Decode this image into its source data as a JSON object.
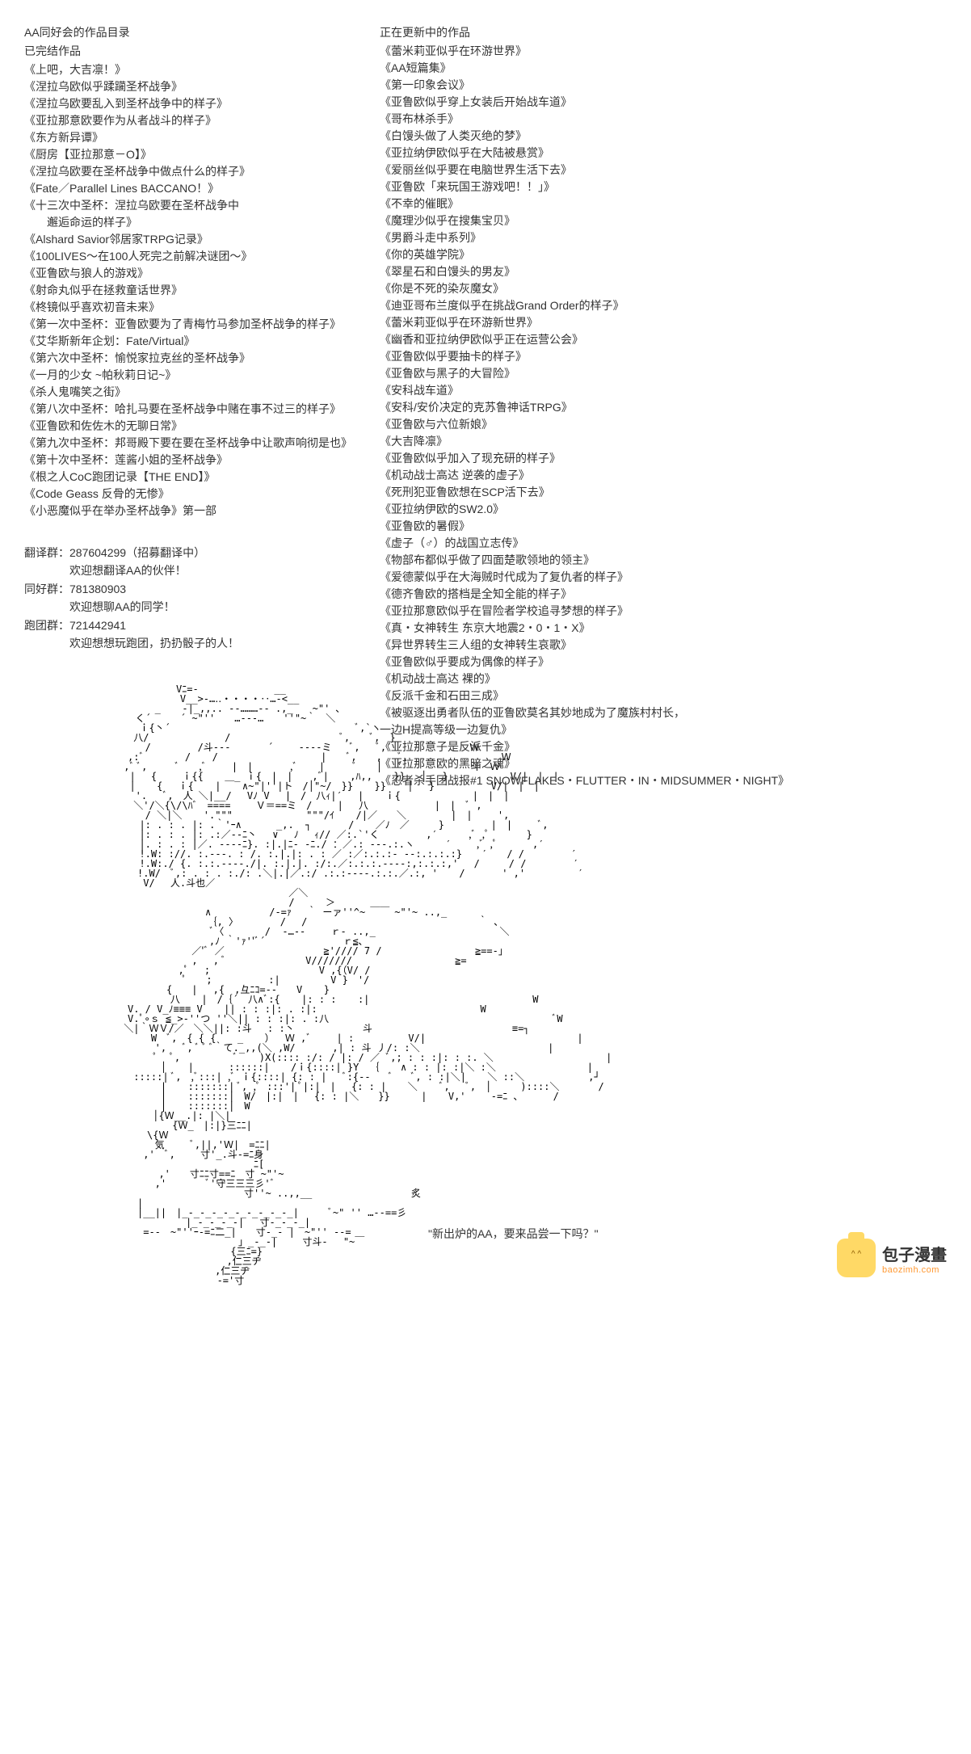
{
  "left": {
    "header": "AA同好会的作品目录",
    "completed_title": "已完结作品",
    "completed_items": [
      "《上吧，大吉凛！》",
      "《涅拉乌欧似乎蹂躏圣杯战争》",
      "《涅拉乌欧要乱入到圣杯战争中的样子》",
      "《亚拉那意欧要作为从者战斗的样子》",
      "《东方新异谭》",
      "《厨房【亚拉那意－O】》",
      "《涅拉乌欧要在圣杯战争中做点什么的样子》",
      "《Fate／Parallel Lines BACCANO！》",
      "《十三次中圣杯：涅拉乌欧要在圣杯战争中\n　　邂逅命运的样子》",
      "《Alshard Savior邻居家TRPG记录》",
      "《100LIVES～在100人死完之前解决谜团～》",
      "《亚鲁欧与狼人的游戏》",
      "《射命丸似乎在拯救童话世界》",
      "《柊镜似乎喜欢初音未来》",
      "《第一次中圣杯：亚鲁欧要为了青梅竹马参加圣杯战争的样子》",
      "《艾华斯新年企划：Fate/Virtual》",
      "《第六次中圣杯：愉悦家拉克丝的圣杯战争》",
      "《一月的少女 ~帕秋莉日记~》",
      "《杀人鬼嘴笑之街》",
      "《第八次中圣杯：哈扎马要在圣杯战争中赌在事不过三的样子》",
      "《亚鲁欧和佐佐木的无聊日常》",
      "《第九次中圣杯：邦哥殿下要在要在圣杯战争中让歌声响彻是也》",
      "《第十次中圣杯：莲酱小姐的圣杯战争》",
      "《根之人CoC跑团记录【THE END】》",
      "《Code Geass 反骨的无惨》",
      "《小恶魔似乎在举办圣杯战争》第一部"
    ],
    "groups": {
      "translate_label": "翻译群：287604299（招募翻译中）",
      "translate_sub": "欢迎想翻译AA的伙伴！",
      "fan_label": "同好群：781380903",
      "fan_sub": "欢迎想聊AA的同学！",
      "trpg_label": "跑团群：721442941",
      "trpg_sub": "欢迎想想玩跑团，扔扔骰子的人！"
    }
  },
  "right": {
    "updating_title": "正在更新中的作品",
    "updating_items": [
      "《蕾米莉亚似乎在环游世界》",
      "《AA短篇集》",
      "《第一印象会议》",
      "《亚鲁欧似乎穿上女装后开始战车道》",
      "《哥布林杀手》",
      "《白馒头做了人类灭绝的梦》",
      "《亚拉纳伊欧似乎在大陆被悬赏》",
      "《爱丽丝似乎要在电脑世界生活下去》",
      "《亚鲁欧「来玩国王游戏吧！！」》",
      "《不幸的催眠》",
      "《魔理沙似乎在搜集宝贝》",
      "《男爵斗走中系列》",
      "《你的英雄学院》",
      "《翠星石和白馒头的男友》",
      "《你是不死的染灰魔女》",
      "《迪亚哥布兰度似乎在挑战Grand Order的样子》",
      "《蕾米莉亚似乎在环游新世界》",
      "《幽香和亚拉纳伊欧似乎正在运营公会》",
      "《亚鲁欧似乎要抽卡的样子》",
      "《亚鲁欧与黑子的大冒险》",
      "《安科战车道》",
      "《安科/安价决定的克苏鲁神话TRPG》",
      "《亚鲁欧与六位新娘》",
      "《大吉降凛》",
      "《亚鲁欧似乎加入了现充研的样子》",
      "《机动战士高达 逆袭的虚子》",
      "《死刑犯亚鲁欧想在SCP活下去》",
      "《亚拉纳伊欧的SW2.0》",
      "《亚鲁欧的暑假》",
      "《虚子（♂）的战国立志传》",
      "《物部布都似乎做了四面楚歌领地的领主》",
      "《爱德蒙似乎在大海贼时代成为了复仇者的样子》",
      "《德齐鲁欧的搭档是全知全能的样子》",
      "《亚拉那意欧似乎在冒险者学校追寻梦想的样子》",
      "《真・女神转生 东京大地震2・0・1・X》",
      "《异世界转生三人组的女神转生哀歌》",
      "《亚鲁欧似乎要成为偶像的样子》",
      "《机动战士高达 裸的》",
      "《反派千金和石田三成》",
      "《被驱逐出勇者队伍的亚鲁欧莫名其妙地成为了魔族村村长，\n一边H提高等级一边复仇》",
      "《亚拉那意子是反派千金》",
      "《亚拉那意欧的黑暗之魂》",
      "《忍者杀手团战报#1 SNOWFLAKES・FLUTTER・IN・MIDSUMMER・NIGHT》"
    ],
    "quote": "\"新出炉的AA，要来品尝一下吗？\""
  },
  "logo": {
    "main_text": "包子漫畫",
    "sub_text": "baozimh.com"
  },
  "ascii": "　　　　　　　　　Vﾆ=-　　　　 　 　 __\n　　　　 　 　 　 V__>‐…‥・・・・‥…‐<__\n　　　 　 　 _ 　 -|_,,.. -‐………‐- .,_　　~\"' ､\n　 　 　 く´　　　´ ~\"''　　…‐‐‐…　　''\"~｀　＼\n　　　 　 ｉ{丶´　　　　 　 　 　 　 　 　 　 　 　 ﾞ,`ヽ\n　　　　 八/　　　　 　 　 /　 　 　 　 　 　 　 ﾞ,　　ﾞ,　}\n　　 　 　 /　 　 　 /斗‐‐- 　 　 ´　　 -‐‐-ミ 　 ﾞ, 　ﾞ,′　　　　　　　　Ｗ\n　　　　,:ﾞ　　 　 / 　 /　　 　 　 　 　 　 |　　ﾞ,　　, 　ﾞ, 　 　 　 　 　 　Ｗ\n　　　 ,ﾞ ﾞ,　 　 ﾞ　　,ﾞ　　 |　| 　 　 ,ﾞ 　 |　 　 ﾞ　　│ 　ﾞ 　 　 　 　 斗　Ｗ\n　　 　 | 　{　　 ｉ{{ 　 ＿_ ｉ{　|　|　　,ﾞ| 　 ,ﾊ,, 　 }}　 │ 　}　 　 　 　 V/|　|　|\n　 　 　| 　 {　 ｉ{ 　 | 　 ∧~\"|''|ト　/│\"~/　}} 　 }} 　 │ 　}　　 　 　 V/|　|　|\n　 　 　 '.　 ﾞ,　人 ＼|__/　 Vﾉ V　 |　/　八ｨ|′　 | 　 ｉ{　　 　 　 　 |　|　|\n　　　　 ＼'/＼{\\/\\ﾊﾞ　====　　 Ｖ＝==ミ　/　　 |　 八　　　 　 　 |　|　ﾞ ,\n　　 　 　 / ＼|＼ 　 '.\"\"\"　　　　　　　 \"\"\"/ｲ 　 /|／　　＼　　　　 |　|　　 ',\n　　　 　 |: . : . |: .｀'ｰ∧　　　 _,.  ┐ 　 　 / 　 ／ﾉ　／　　　}　 　 　 |　|　　 ﾞ,\n　　 　 　|: . : . |: .:／‐-ﾆ丶　 ∨　 ﾉ　 ｨ// ／:.`'く　 　 　 ,′　 　 ,ﾞ ,ﾟ 　 　 }\n　　 　 　|. : . : |／. ‐‐--ﾆ}. :|.|ﾆ- -ﾆ./ ：／.: ‐‐-.:.ヽ　 　 ′　　 ,ﾞ ,ﾟ　　　 ,′\n　　　 　 !.W: ://. :.‐‐-. : /. :.|.|: . : ／ :／:.:.:‐ ‐-:.:.:.:}　　′　　/ /　 　 　 ′\n　　 　 　!.W:./ {. :.:.‐‐--./|. :.|.|. :/:.／:.:.:.‐‐‐-:,:.:.:,'　 /　　　/ /　 　 　 ′\n　　　　　!.W/　ﾞ,: . : . :./: .＼|.|／.:/ .:.:‐‐-‐.:.:.／.:, ' 　 / 　 　 ' ,' 　 　 　 ′\n　　　　 　V/　 人.斗也／\n　　　　　　　　　　　　　　　　　　　　 ／＼\n　　　　　　　　　　　　 　 　 　 　 　 /　 　 ＞　　　 ＿＿\n　　　　　　　　　　　　∧　　　　　　/-=ｧ　 ｀ ーァ''^~　　　~\"'~ ..,_\n　　 　 　 　 　 　 　 ｛, 〉　 　 　 /　 /　 　 　 　 　 　 　 　 　 　 　 ｀ 、\n　 　 　 　 　 　 　 　 ﾞ〈　　 　 /  ‐…‐-　 　ｒ- ..,_　　　　　　　　　 　 　 ＼\n　　　　　　　 　 　 　 ,ﾉ ｀'ｧ''ﾞ´　 　 　 　 　 ｒ≦､\n　　　　　　　　　　 ／'ﾞ ／ 　 　 　 　 　 　 ≧'//// 7 /　 　 　 　 　 　 ≧==-」\n　　 　 　 　 　 　 ,　 , ﾞ　　　　　　 　 V///////　　　　　　　　　　 ≧=\n　　　　　　　 　 ,ﾟ　 ;　 　 　 　 　 　 　 V ,{（V/ /\n　 　 　 　 　 　 ﾟ　　;　　 　 　 :|　　　 　 V }　'/\n　　　　　　　　{　　|　 ,{　,彑ﾆｺ=--　　V 　 }\n　　　 　 　 　 八 　 |　/｛´　八∧ﾞ:{ 　 |: : : 　 :|　　　　　 　 　 　 　 　 　 　 W\n　　　　V. / V_ﾉ≡≡≡ V 　 || : : :|: . :|:　　　　　 　 　 　 　 　 　 　 W\n　　　　V.ﾟ∘ｓ ≦_>-''つ ''＼|| : : :|: . :八 　 　 　 　 　 　 　 　 　 　 　 　 　 　 ﾞW\n　　　 ＼|｀ＷＶ/／　＼＼||: :斗　 : :丶 　 　 　 　 斗　 　 　 　 　 　 　 　 　 ≡=┐\n　 　 　 　 W　ﾞ,　{ { { 　 _ 　 ）　 Ｗ ,ﾞ　　 | :　　　　　 V/|　　　　　　　 　 　 　 　 　 |\n　　　 　 　 ',　 ﾞ, ﾞ ﾞ ﾞ｀て._,,(＼ ,W/ 　 　 ,| : 斗 丿/: :＼　　　 　 　 　 　 　 　 |\n　　　　　　 ﾟ　 ﾟ,　　 　 　 ﾞ 　 )X(:::: :/: / |: / ／ ﾞ,; : : :|: : :. ＼　　　 　 　 　 　 　 |\n　　 　 　 　 │ 　 |　　　 ::::::| 　 /ｉ{::::| }Y 　｛ 　 ∧ : : |: :|＼ :＼　　　　 　 　 　 |\n　　　　 :::::| ﾞ,　,ﾞ:::| ,ﾞ ｉ{::::| {: : |　 ﾞ:{-‐ 　 ﾞ 　 ﾞ, : :|＼| 　 ＼ ::＼　　　　　　 ,┘\n　　 　 　 　 | 　 :::::::| ﾞ, ,ﾟ :::'| ﾟ|:|　|　 {: : | 　 ＼　　 ﾞ, 　ﾞ,　│　　　)::::＼　　　　/\n　　 　 　 　 | 　 :::::::|　W/　|:|　|　 {: : |＼　　}}　 　 | 　 V,'　　 -=ﾆ 、　　　 /\n　　 　 　 　 | 　 :::::::|　W\n　　　　　　 │{Ｗ__.|: |＼|　\n　　　　　　　　 {Ｗ_　|:|}三ﾆﾆ|\n　　　　　　\\{Ｗ\n　　　 　 　 気　　 ﾞ,||,'Ｗ|　=ﾆﾆ|\n　　　　　 ,'　ﾞ,　　 寸'_.斗-=ﾆ身\n　　　　　　　　　　　　　　　　　ﾆ[\n　　　　　 　 ,'　　寸ﾆﾆ寸==ﾆ　寸 ~\"'~\n　　　 　 　 ,'　　　　ﾞ'守三三三彡'ﾞ\n　　　　　　　　　　　　　　　　寸''~ ..,,__ 　 　 　 　 　 　 炙\n　　　　　|\n　　　　　|__||　|_-_-_-_-_-_-_-_-_-_|　　　ﾞ~\" '' …‐‐==彡\n　　　　　　　　　　|_-_-_-_-|　 寸-_-_-_|\n　　　　　 =-‐　~\"''ｰ-=ﾆ二_|　　寸-_- |　~\"'' ‐-=\n　　 　 　 　 　 　 　 　 　 」_-_-|　　 寸斗‐　 \"~￣\n　　　　　　 　 　 　 　 　 {三ﾆ=}\n　　　　 　 　 　 　 　 　 ,仁三ヂ\n　　　　　　 　 　 　 　 ,仁三ヂ\n　　　 　 　 　 　 　 　 -='寸\n"
}
